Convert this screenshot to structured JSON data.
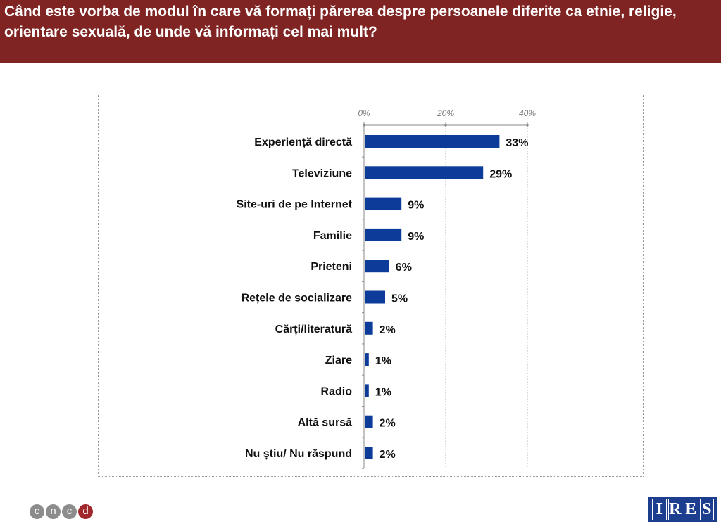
{
  "header": {
    "title": "Când este vorba de modul în care vă formați părerea despre persoanele diferite ca etnie, religie, orientare sexuală, de unde vă informați cel mai mult?"
  },
  "colors": {
    "header_bg": "#7f2422",
    "bar": "#0c3b9a",
    "ires_bg": "#1d3d8f"
  },
  "chart_data": {
    "type": "bar",
    "orientation": "horizontal",
    "categories": [
      "Experiență directă",
      "Televiziune",
      "Site-uri de pe Internet",
      "Familie",
      "Prieteni",
      "Rețele de socializare",
      "Cărți/literatură",
      "Ziare",
      "Radio",
      "Altă sursă",
      "Nu știu/ Nu răspund"
    ],
    "values": [
      33,
      29,
      9,
      9,
      6,
      5,
      2,
      1,
      1,
      2,
      2
    ],
    "value_labels": [
      "33%",
      "29%",
      "9%",
      "9%",
      "6%",
      "5%",
      "2%",
      "1%",
      "1%",
      "2%",
      "2%"
    ],
    "xlim": [
      0,
      40
    ],
    "ticks": [
      0,
      20,
      40
    ],
    "tick_labels": [
      "0%",
      "20%",
      "40%"
    ],
    "axis_position": "top",
    "grid": true
  },
  "logos": {
    "cncd_letters": [
      "c",
      "n",
      "c",
      "d"
    ],
    "ires_letters": [
      "I",
      "R",
      "E",
      "S"
    ]
  }
}
